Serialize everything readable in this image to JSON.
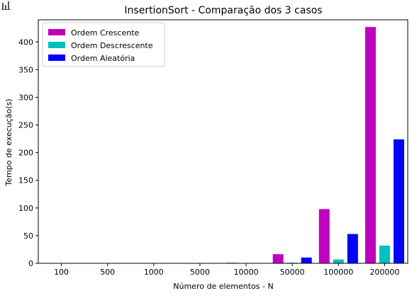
{
  "chart_data": {
    "type": "bar",
    "title": "InsertionSort - Comparação dos 3 casos",
    "xlabel": "Número de elementos - N",
    "ylabel": "Tempo de execução(s)",
    "categories": [
      "100",
      "500",
      "1000",
      "5000",
      "10000",
      "50000",
      "100000",
      "200000"
    ],
    "ylim": [
      0,
      440
    ],
    "yticks": [
      0,
      50,
      100,
      150,
      200,
      250,
      300,
      350,
      400
    ],
    "grid": false,
    "legend_position": "top-left",
    "series": [
      {
        "name": "Ordem Crescente",
        "color": "#bf00bf",
        "values": [
          0.0,
          0.0,
          0.02,
          0.3,
          1.0,
          16.5,
          98,
          427
        ]
      },
      {
        "name": "Ordem Descrescente",
        "color": "#00bfbf",
        "values": [
          0.0,
          0.0,
          0.0,
          0.02,
          0.05,
          1.2,
          7,
          32
        ]
      },
      {
        "name": "Ordem Aleatória",
        "color": "#0000ff",
        "values": [
          0.0,
          0.0,
          0.01,
          0.15,
          0.6,
          10.5,
          53,
          224
        ]
      }
    ]
  },
  "toolbar": {
    "icon": "bar-chart-icon"
  }
}
